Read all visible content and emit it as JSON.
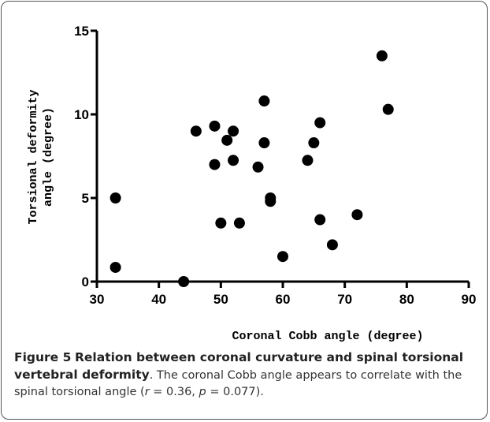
{
  "chart_data": {
    "type": "scatter",
    "xlabel": "Coronal Cobb angle (degree)",
    "ylabel": [
      "Torsional deformity",
      "angle (degree)"
    ],
    "x": [
      33,
      33,
      44,
      46,
      49,
      49,
      50,
      51,
      52,
      52,
      53,
      56,
      57,
      57,
      58,
      58,
      60,
      64,
      65,
      66,
      66,
      68,
      72,
      76,
      77
    ],
    "values": [
      5.0,
      0.85,
      0,
      9.0,
      9.3,
      7.0,
      3.5,
      8.45,
      9.0,
      7.25,
      3.5,
      6.85,
      10.8,
      8.3,
      5.0,
      4.8,
      1.5,
      7.25,
      8.3,
      9.5,
      3.7,
      2.2,
      4.0,
      13.5,
      10.3
    ],
    "color": "#000000",
    "xlim": [
      30,
      90
    ],
    "xticks": [
      30,
      40,
      50,
      60,
      70,
      80,
      90
    ],
    "ylim": [
      0,
      15
    ],
    "yticks": [
      0,
      5,
      10,
      15
    ]
  },
  "caption": {
    "label": "Figure 5",
    "title": "Relation between coronal curvature and spinal torsional vertebral deformity",
    "text": [
      ". The coronal Cobb angle appears to correlate with the spinal torsional angle (",
      "r",
      " = 0.36, ",
      "p",
      " = 0.077)."
    ]
  }
}
